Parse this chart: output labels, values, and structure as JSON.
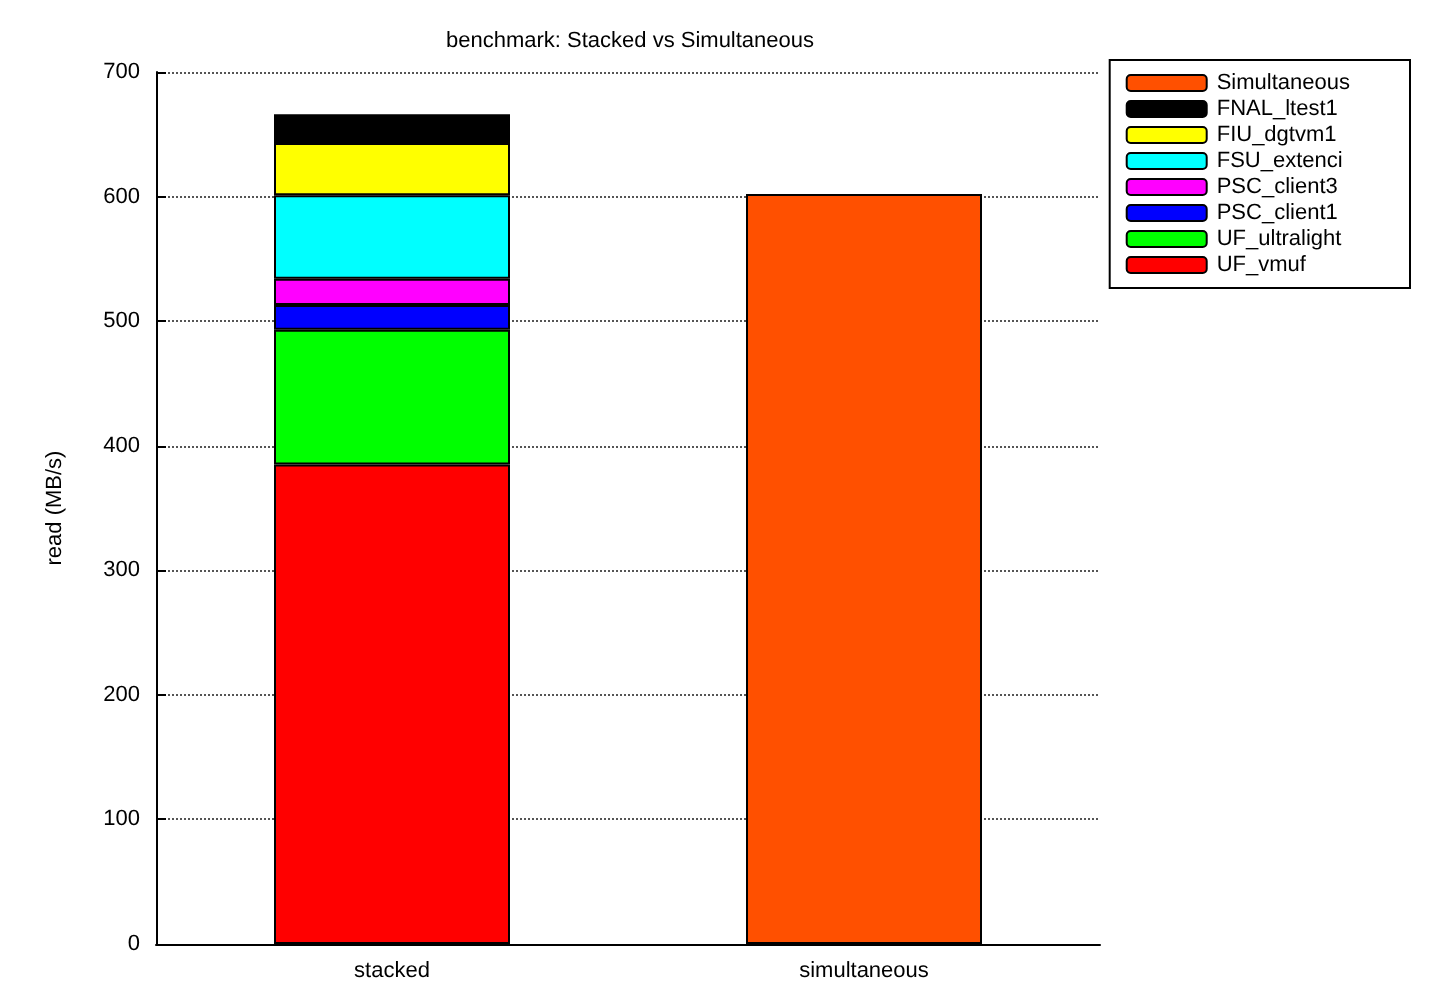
{
  "chart_data": {
    "type": "bar",
    "title": "benchmark: Stacked vs Simultaneous",
    "ylabel": "read (MB/s)",
    "categories": [
      "stacked",
      "simultaneous"
    ],
    "stacked": true,
    "series": [
      {
        "name": "UF_vmuf",
        "color": "#ff0000",
        "values": [
          385,
          null
        ]
      },
      {
        "name": "UF_ultralight",
        "color": "#00ff00",
        "values": [
          108,
          null
        ]
      },
      {
        "name": "PSC_client1",
        "color": "#0000ff",
        "values": [
          20,
          null
        ]
      },
      {
        "name": "PSC_client3",
        "color": "#ff00ff",
        "values": [
          21,
          null
        ]
      },
      {
        "name": "FSU_extenci",
        "color": "#00ffff",
        "values": [
          67,
          null
        ]
      },
      {
        "name": "FIU_dgtvm1",
        "color": "#ffff00",
        "values": [
          42,
          null
        ]
      },
      {
        "name": "FNAL_ltest1",
        "color": "#000000",
        "values": [
          23,
          null
        ]
      },
      {
        "name": "Simultaneous",
        "color": "#ff5000",
        "values": [
          null,
          602
        ]
      }
    ],
    "ylim": [
      0,
      700
    ],
    "yticks": [
      0,
      100,
      200,
      300,
      400,
      500,
      600,
      700
    ],
    "grid": "y",
    "legend": "top right"
  }
}
